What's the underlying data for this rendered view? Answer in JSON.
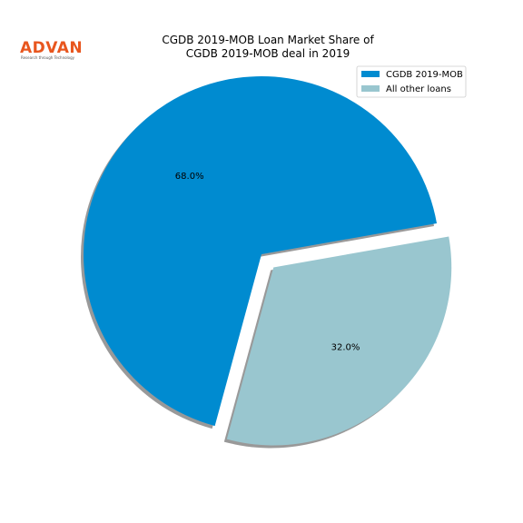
{
  "logo": {
    "name": "ADVAN",
    "tagline": "Research through Technology"
  },
  "chart_data": {
    "type": "pie",
    "title": [
      "CGDB 2019-MOB Loan Market Share of",
      "CGDB 2019-MOB deal in 2019"
    ],
    "categories": [
      "CGDB 2019-MOB",
      "All other loans"
    ],
    "values": [
      68.0,
      32.0
    ],
    "labels": [
      "68.0%",
      "32.0%"
    ],
    "colors": [
      "#008bd0",
      "#99c6cf"
    ],
    "explode": [
      0,
      0.1
    ],
    "start_angle_deg": 10,
    "shadow": true,
    "legend_position": "upper-right"
  }
}
